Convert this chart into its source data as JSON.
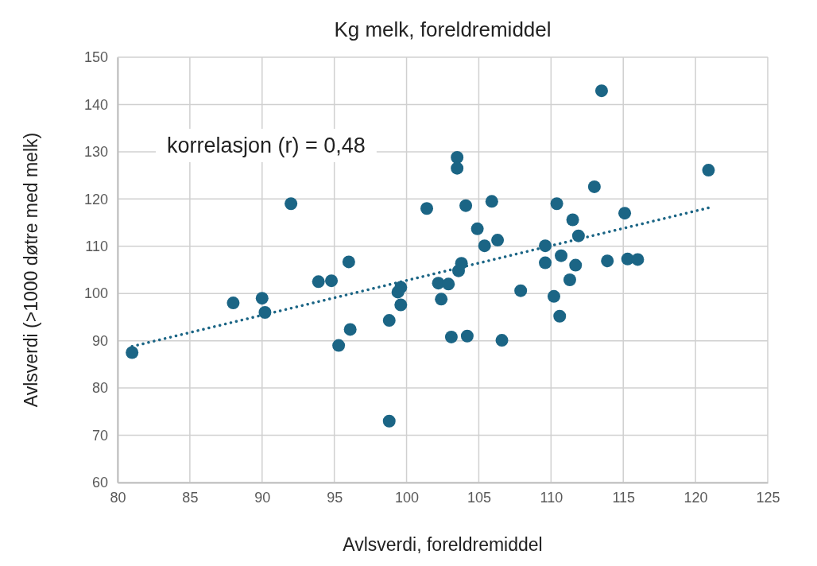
{
  "chart_data": {
    "type": "scatter",
    "title": "Kg melk, foreldremiddel",
    "xlabel": "Avlsverdi, foreldremiddel",
    "ylabel": "Avlsverdi (>1000 døtre med melk)",
    "annotations": [
      "korrelasjon (r) = 0,48"
    ],
    "xlim": [
      80,
      125
    ],
    "xticks": [
      80,
      85,
      90,
      95,
      100,
      105,
      110,
      115,
      120,
      125
    ],
    "ylim": [
      60,
      150
    ],
    "yticks": [
      60,
      70,
      80,
      90,
      100,
      110,
      120,
      130,
      140,
      150
    ],
    "grid": true,
    "series": [
      {
        "type": "scatter",
        "marker": "circle",
        "color": "#1b6585",
        "x": [
          81,
          88,
          90,
          90.2,
          92,
          93.9,
          94.8,
          95.3,
          96,
          96.1,
          98.8,
          98.8,
          99.4,
          99.6,
          99.6,
          101.4,
          102.2,
          102.4,
          102.9,
          103.1,
          103.5,
          103.5,
          103.6,
          103.8,
          104.1,
          104.2,
          104.9,
          105.4,
          105.9,
          106.3,
          106.6,
          107.9,
          109.6,
          109.6,
          110.2,
          110.4,
          110.6,
          110.7,
          111.3,
          111.5,
          111.7,
          111.9,
          113,
          113.5,
          113.9,
          115.1,
          115.3,
          116,
          120.9
        ],
        "values": [
          87.5,
          98,
          99,
          96,
          119,
          102.5,
          102.7,
          89,
          106.7,
          92.4,
          94.3,
          73,
          100.3,
          101.3,
          97.6,
          118,
          102.2,
          98.8,
          102,
          90.8,
          128.8,
          126.5,
          104.8,
          106.4,
          118.6,
          91,
          113.7,
          110.1,
          119.5,
          111.3,
          90.1,
          100.6,
          110.1,
          106.5,
          99.4,
          119,
          95.2,
          108,
          102.9,
          115.6,
          106,
          112.2,
          122.6,
          142.9,
          106.9,
          117,
          107.3,
          107.2,
          126.1
        ]
      },
      {
        "type": "line",
        "color": "#1b6585",
        "line_style": "dotted",
        "marker": "none",
        "x": [
          81,
          121
        ],
        "values": [
          88.8,
          118.2
        ]
      }
    ]
  }
}
